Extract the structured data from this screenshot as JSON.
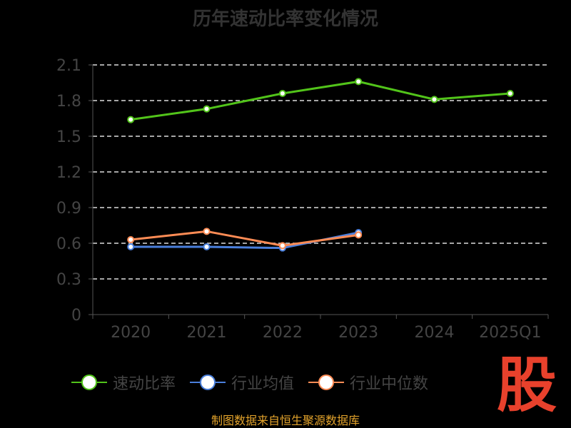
{
  "chart_data": {
    "type": "line",
    "title": "历年速动比率变化情况",
    "categories": [
      "2020",
      "2021",
      "2022",
      "2023",
      "2024",
      "2025Q1"
    ],
    "ylim": [
      0,
      2.1
    ],
    "yticks": [
      "0",
      "0.3",
      "0.6",
      "0.9",
      "1.2",
      "1.5",
      "1.8",
      "2.1"
    ],
    "grid": true,
    "legend_position": "bottom",
    "series": [
      {
        "name": "速动比率",
        "color": "#52c41a",
        "values": [
          1.64,
          1.73,
          1.86,
          1.96,
          1.81,
          1.86
        ]
      },
      {
        "name": "行业均值",
        "color": "#4a7fdc",
        "values": [
          0.57,
          0.57,
          0.56,
          0.69,
          null,
          null
        ]
      },
      {
        "name": "行业中位数",
        "color": "#ff8c55",
        "values": [
          0.63,
          0.7,
          0.58,
          0.67,
          null,
          null
        ]
      }
    ]
  },
  "source": "制图数据来自恒生聚源数据库",
  "logo": "股"
}
